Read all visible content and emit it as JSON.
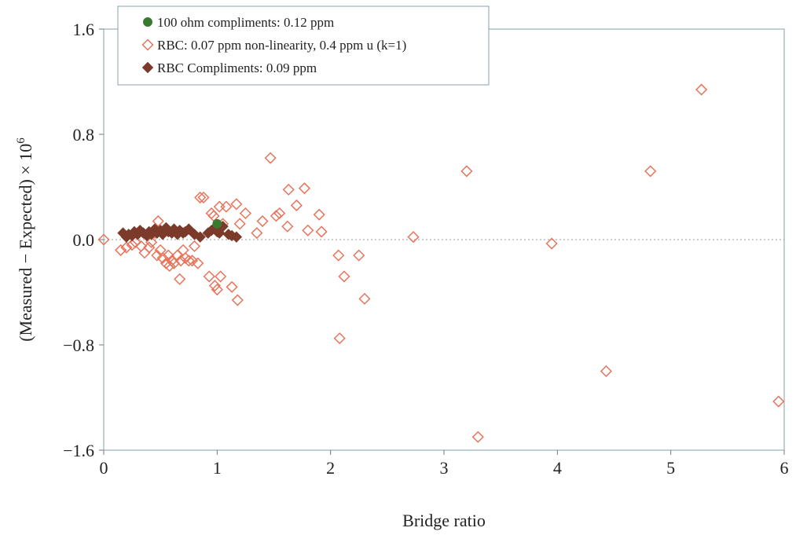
{
  "chart_data": {
    "type": "scatter",
    "xlabel": "Bridge ratio",
    "ylabel": "(Measured − Expected) × 10",
    "ylabel_superscript": "6",
    "xlim": [
      0,
      6
    ],
    "ylim": [
      -1.6,
      1.6
    ],
    "x_ticks": [
      0,
      1,
      2,
      3,
      4,
      5,
      6
    ],
    "x_tick_labels": [
      "0",
      "1",
      "2",
      "3",
      "4",
      "5",
      "6"
    ],
    "y_ticks": [
      1.6,
      0.8,
      0.0,
      -0.8,
      -1.6
    ],
    "y_tick_labels": [
      "1.6",
      "0.8",
      "0.0",
      "−0.8",
      "−1.6"
    ],
    "zero_line": "dotted",
    "grid": false,
    "legend_position": "top-left",
    "series": [
      {
        "name": "100 ohm compliments: 0.12 ppm",
        "marker": "circle-filled",
        "color": "#3a7a2e",
        "points": [
          [
            1.0,
            0.12
          ]
        ]
      },
      {
        "name": "RBC: 0.07 ppm non-linearity, 0.4 ppm u (k=1)",
        "marker": "diamond-open",
        "color": "#e8735a",
        "points": [
          [
            0.0,
            0.0
          ],
          [
            0.15,
            -0.08
          ],
          [
            0.2,
            -0.06
          ],
          [
            0.25,
            -0.04
          ],
          [
            0.28,
            -0.02
          ],
          [
            0.33,
            -0.05
          ],
          [
            0.36,
            -0.1
          ],
          [
            0.4,
            -0.06
          ],
          [
            0.42,
            -0.02
          ],
          [
            0.45,
            0.05
          ],
          [
            0.47,
            -0.12
          ],
          [
            0.48,
            0.14
          ],
          [
            0.5,
            -0.08
          ],
          [
            0.52,
            -0.14
          ],
          [
            0.55,
            -0.18
          ],
          [
            0.57,
            -0.12
          ],
          [
            0.58,
            -0.2
          ],
          [
            0.6,
            -0.16
          ],
          [
            0.62,
            -0.18
          ],
          [
            0.65,
            -0.12
          ],
          [
            0.67,
            -0.3
          ],
          [
            0.68,
            -0.16
          ],
          [
            0.7,
            -0.08
          ],
          [
            0.72,
            -0.14
          ],
          [
            0.75,
            -0.16
          ],
          [
            0.78,
            -0.16
          ],
          [
            0.8,
            -0.05
          ],
          [
            0.83,
            -0.18
          ],
          [
            0.85,
            0.32
          ],
          [
            0.88,
            0.32
          ],
          [
            0.93,
            -0.28
          ],
          [
            0.95,
            0.2
          ],
          [
            0.97,
            0.18
          ],
          [
            0.98,
            -0.35
          ],
          [
            1.0,
            -0.38
          ],
          [
            1.0,
            0.08
          ],
          [
            1.02,
            0.25
          ],
          [
            1.03,
            -0.28
          ],
          [
            1.05,
            0.12
          ],
          [
            1.08,
            0.25
          ],
          [
            1.13,
            -0.36
          ],
          [
            1.17,
            0.27
          ],
          [
            1.18,
            -0.46
          ],
          [
            1.2,
            0.12
          ],
          [
            1.25,
            0.2
          ],
          [
            1.35,
            0.05
          ],
          [
            1.4,
            0.14
          ],
          [
            1.47,
            0.62
          ],
          [
            1.52,
            0.18
          ],
          [
            1.55,
            0.2
          ],
          [
            1.62,
            0.1
          ],
          [
            1.63,
            0.38
          ],
          [
            1.7,
            0.26
          ],
          [
            1.77,
            0.39
          ],
          [
            1.8,
            0.07
          ],
          [
            1.9,
            0.19
          ],
          [
            1.92,
            0.06
          ],
          [
            2.07,
            -0.12
          ],
          [
            2.08,
            -0.75
          ],
          [
            2.12,
            -0.28
          ],
          [
            2.25,
            -0.12
          ],
          [
            2.3,
            -0.45
          ],
          [
            2.73,
            0.02
          ],
          [
            3.2,
            0.52
          ],
          [
            3.3,
            -1.5
          ],
          [
            3.95,
            -0.03
          ],
          [
            4.43,
            -1.0
          ],
          [
            4.82,
            0.52
          ],
          [
            5.27,
            1.14
          ],
          [
            5.95,
            -1.23
          ]
        ]
      },
      {
        "name": "RBC Compliments: 0.09 ppm",
        "marker": "diamond-filled",
        "color": "#7b3a2a",
        "points": [
          [
            0.17,
            0.05
          ],
          [
            0.2,
            0.02
          ],
          [
            0.22,
            0.04
          ],
          [
            0.25,
            0.03
          ],
          [
            0.27,
            0.06
          ],
          [
            0.3,
            0.04
          ],
          [
            0.32,
            0.07
          ],
          [
            0.35,
            0.05
          ],
          [
            0.38,
            0.03
          ],
          [
            0.4,
            0.06
          ],
          [
            0.42,
            0.04
          ],
          [
            0.45,
            0.08
          ],
          [
            0.47,
            0.05
          ],
          [
            0.5,
            0.07
          ],
          [
            0.52,
            0.04
          ],
          [
            0.55,
            0.09
          ],
          [
            0.57,
            0.06
          ],
          [
            0.6,
            0.05
          ],
          [
            0.62,
            0.08
          ],
          [
            0.65,
            0.04
          ],
          [
            0.67,
            0.07
          ],
          [
            0.7,
            0.05
          ],
          [
            0.72,
            0.06
          ],
          [
            0.75,
            0.08
          ],
          [
            0.8,
            0.04
          ],
          [
            0.85,
            0.02
          ],
          [
            0.92,
            0.05
          ],
          [
            0.95,
            0.07
          ],
          [
            0.98,
            0.09
          ],
          [
            1.0,
            0.06
          ],
          [
            1.02,
            0.05
          ],
          [
            1.05,
            0.1
          ],
          [
            1.1,
            0.04
          ],
          [
            1.13,
            0.03
          ],
          [
            1.17,
            0.02
          ]
        ]
      }
    ]
  }
}
